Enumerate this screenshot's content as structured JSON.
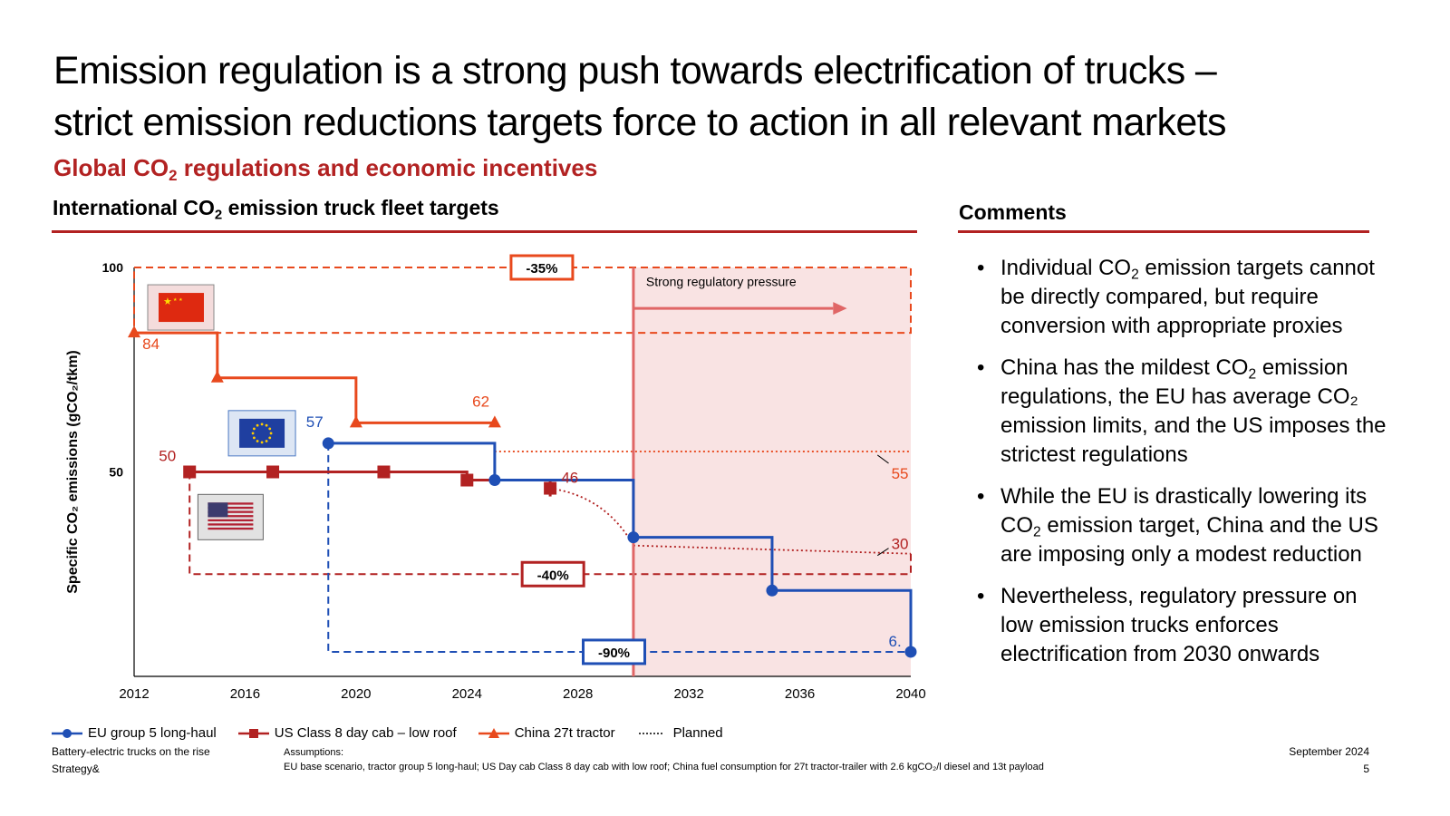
{
  "title_line1": "Emission regulation is a strong push towards electrification of trucks –",
  "title_line2": "strict emission reductions targets force to action in all relevant markets",
  "subtitle": {
    "pre": "Global CO",
    "sub": "2",
    "post": " regulations and economic incentives"
  },
  "chart_section": {
    "pre": "International CO",
    "sub": "2",
    "post": " emission truck fleet targets"
  },
  "comments_title": "Comments",
  "comments": [
    {
      "pre": "Individual CO",
      "sub": "2",
      "post": " emission targets cannot be directly compared, but require conversion with appropriate proxies"
    },
    {
      "pre": "China has the mildest CO",
      "sub": "2",
      "post": " emission regulations, the EU has average CO₂ emission limits, and the US imposes the strictest regulations"
    },
    {
      "pre": "While the EU is drastically lowering its CO",
      "sub": "2",
      "post": " emission target, China and the US are imposing only a modest reduction"
    },
    {
      "pre": "Nevertheless, regulatory pressure on low emission trucks enforces electrification from 2030 onwards",
      "sub": "",
      "post": ""
    }
  ],
  "chart_data": {
    "type": "line",
    "ylabel": "Specific CO₂ emissions (gCO₂/tkm)",
    "xlim": [
      2012,
      2040
    ],
    "ylim": [
      0,
      100
    ],
    "x_ticks": [
      "2012",
      "2016",
      "2020",
      "2024",
      "2028",
      "2032",
      "2036",
      "2040"
    ],
    "y_ticks": [
      "100",
      "50"
    ],
    "series": [
      {
        "name": "China 27t tractor",
        "color": "#e8491d",
        "marker": "triangle",
        "steps": [
          [
            2012,
            84
          ],
          [
            2015,
            73
          ],
          [
            2020,
            62
          ],
          [
            2025,
            62
          ]
        ]
      },
      {
        "name": "US Class 8 day cab – low roof",
        "color": "#b22222",
        "marker": "square",
        "steps": [
          [
            2014,
            50
          ],
          [
            2024,
            48
          ],
          [
            2027,
            46
          ]
        ],
        "points_x": [
          2014,
          2017,
          2021,
          2024,
          2027
        ]
      },
      {
        "name": "EU group 5 long-haul",
        "color": "#1f4fb5",
        "marker": "circle",
        "steps": [
          [
            2019,
            57
          ],
          [
            2025,
            48
          ],
          [
            2030,
            34
          ],
          [
            2035,
            21
          ],
          [
            2040,
            6
          ]
        ]
      }
    ],
    "planned_lines": [
      {
        "color": "#e8491d",
        "from": [
          2025,
          55
        ],
        "to": [
          2040,
          55
        ]
      },
      {
        "color": "#b22222",
        "from": [
          2027,
          46
        ],
        "to": [
          2030,
          32
        ]
      },
      {
        "color": "#b22222",
        "from": [
          2030,
          32
        ],
        "to": [
          2040,
          30
        ]
      }
    ],
    "data_labels": [
      {
        "text": "84",
        "series": "China 27t tractor"
      },
      {
        "text": "62",
        "series": "China 27t tractor"
      },
      {
        "text": "55",
        "series": "China 27t tractor"
      },
      {
        "text": "50",
        "series": "US Class 8 day cab – low roof"
      },
      {
        "text": "46",
        "series": "US Class 8 day cab – low roof"
      },
      {
        "text": "30",
        "series": "US Class 8 day cab – low roof"
      },
      {
        "text": "57",
        "series": "EU group 5 long-haul"
      },
      {
        "text": "6.",
        "series": "EU group 5 long-haul"
      }
    ],
    "reductions": [
      {
        "label": "-35%",
        "series": "China 27t tractor",
        "level": 100
      },
      {
        "label": "-40%",
        "series": "US Class 8 day cab – low roof",
        "level": 25
      },
      {
        "label": "-90%",
        "series": "EU group 5 long-haul",
        "level": 6
      }
    ],
    "annotation": {
      "text": "Strong regulatory pressure",
      "from_year": 2030
    },
    "legend": [
      "EU group 5 long-haul",
      "US Class 8 day cab – low roof",
      "China 27t tractor",
      "Planned"
    ]
  },
  "colors": {
    "accent": "#b22222",
    "china": "#e8491d",
    "us": "#b22222",
    "eu": "#1f4fb5",
    "pressure_zone": "#f9e3e3",
    "pressure_line": "#e06666"
  },
  "footer": {
    "left1": "Battery-electric trucks on the rise",
    "left2": "Strategy&",
    "assumptions_label": "Assumptions:",
    "assumptions": "EU base scenario, tractor group 5 long-haul; US Day cab Class 8 day cab with low roof; China fuel consumption for 27t tractor-trailer with 2.6 kgCO₂/l diesel and 13t payload",
    "date": "September 2024",
    "page": "5"
  }
}
